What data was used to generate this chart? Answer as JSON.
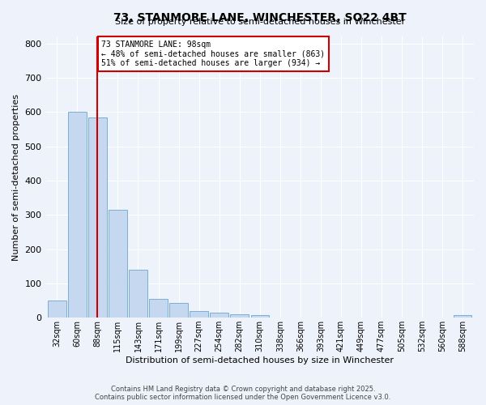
{
  "title": "73, STANMORE LANE, WINCHESTER, SO22 4BT",
  "subtitle": "Size of property relative to semi-detached houses in Winchester",
  "xlabel": "Distribution of semi-detached houses by size in Winchester",
  "ylabel": "Number of semi-detached properties",
  "bar_labels": [
    "32sqm",
    "60sqm",
    "88sqm",
    "115sqm",
    "143sqm",
    "171sqm",
    "199sqm",
    "227sqm",
    "254sqm",
    "282sqm",
    "310sqm",
    "338sqm",
    "366sqm",
    "393sqm",
    "421sqm",
    "449sqm",
    "477sqm",
    "505sqm",
    "532sqm",
    "560sqm",
    "588sqm"
  ],
  "bar_values": [
    50,
    600,
    585,
    315,
    140,
    55,
    43,
    20,
    15,
    10,
    8,
    0,
    0,
    0,
    0,
    0,
    0,
    0,
    0,
    0,
    8
  ],
  "bar_color": "#c5d8f0",
  "bar_edge_color": "#7bafd4",
  "vline_x": 2,
  "vline_color": "#cc0000",
  "annotation_title": "73 STANMORE LANE: 98sqm",
  "annotation_line1": "← 48% of semi-detached houses are smaller (863)",
  "annotation_line2": "51% of semi-detached houses are larger (934) →",
  "annotation_box_color": "#cc0000",
  "ylim": [
    0,
    820
  ],
  "yticks": [
    0,
    100,
    200,
    300,
    400,
    500,
    600,
    700,
    800
  ],
  "footer1": "Contains HM Land Registry data © Crown copyright and database right 2025.",
  "footer2": "Contains public sector information licensed under the Open Government Licence v3.0.",
  "bg_color": "#eef2fb",
  "plot_bg_color": "#eef2fb",
  "grid_color": "#ffffff",
  "title_fontsize": 10,
  "subtitle_fontsize": 8,
  "xlabel_fontsize": 8,
  "ylabel_fontsize": 8,
  "tick_fontsize": 7,
  "annotation_fontsize": 7,
  "footer_fontsize": 6
}
